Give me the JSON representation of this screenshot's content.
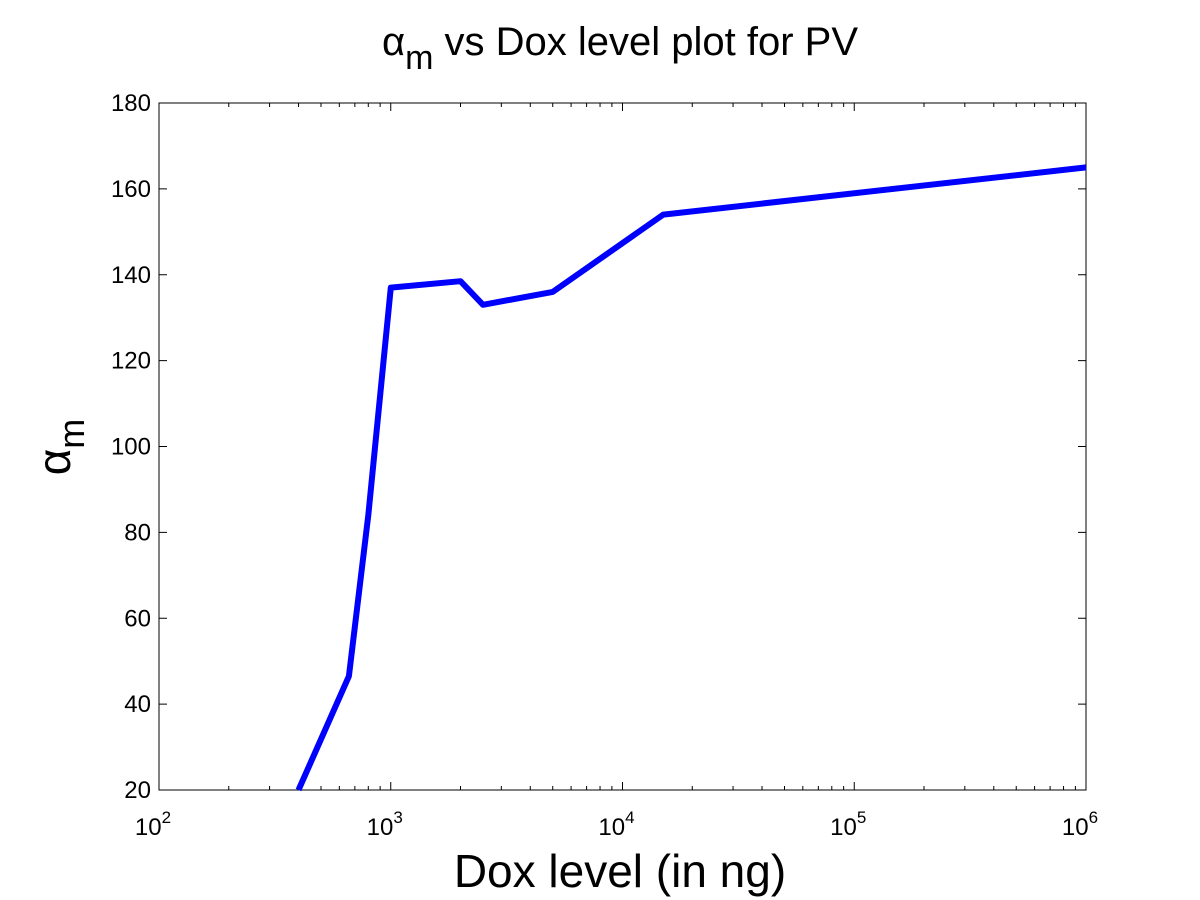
{
  "chart_data": {
    "type": "line",
    "title": {
      "symbol": "α",
      "subscript": "m",
      "rest": " vs Dox level plot for PV"
    },
    "xlabel": "Dox level (in ng)",
    "ylabel": {
      "symbol": "α",
      "subscript": "m"
    },
    "x_scale": "log",
    "xlim": [
      100,
      1000000
    ],
    "ylim": [
      20,
      180
    ],
    "x_ticks": [
      {
        "value": 100,
        "base": "10",
        "exp": "2"
      },
      {
        "value": 1000,
        "base": "10",
        "exp": "3"
      },
      {
        "value": 10000,
        "base": "10",
        "exp": "4"
      },
      {
        "value": 100000,
        "base": "10",
        "exp": "5"
      },
      {
        "value": 1000000,
        "base": "10",
        "exp": "6"
      }
    ],
    "y_ticks": [
      20,
      40,
      60,
      80,
      100,
      120,
      140,
      160,
      180
    ],
    "grid": false,
    "line_color": "#0000ff",
    "series": [
      {
        "x": [
          400,
          660,
          800,
          1000,
          2000,
          2500,
          5000,
          15000,
          1000000
        ],
        "y": [
          20,
          46.5,
          84,
          137,
          138.5,
          133,
          136,
          154,
          165
        ]
      }
    ]
  }
}
